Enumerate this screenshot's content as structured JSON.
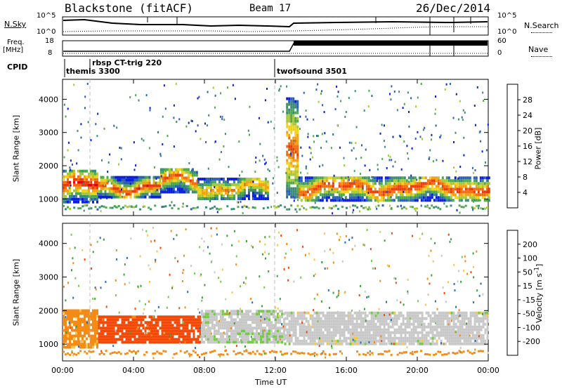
{
  "header": {
    "station": "Blackstone (fitACF)",
    "beam": "Beam 17",
    "date": "26/Dec/2014"
  },
  "noise_panel": {
    "left_label": "N.Sky",
    "right_label": "N.Search",
    "left_ticks": [
      "10^5",
      "10^0"
    ],
    "right_ticks": [
      "10^5",
      "10^0"
    ]
  },
  "freq_panel": {
    "left_label_1": "Freq.",
    "left_label_2": "[MHz]",
    "right_label": "Nave",
    "left_ticks": [
      "18",
      "8"
    ],
    "right_ticks": [
      "60",
      "0"
    ]
  },
  "cpid_panel": {
    "label": "CPID",
    "programs": [
      {
        "name": "themis 3300",
        "start": "00:00"
      },
      {
        "name": "rbsp CT-trig 220",
        "start": "01:30"
      },
      {
        "name": "twofsound 3501",
        "start": "12:00"
      }
    ]
  },
  "colors": {
    "power_scale": [
      "#0a1fdc",
      "#2c5fb8",
      "#3d8c78",
      "#4caa4c",
      "#a8c83a",
      "#f0d21e",
      "#f5a014",
      "#f06e0f",
      "#e83c0a",
      "#dc0a0a"
    ],
    "velocity_scale": [
      "#e00a0a",
      "#f04a0a",
      "#f58a14",
      "#f5c84a",
      "#c8c8c8",
      "#c8c8c8",
      "#78c850",
      "#3ca03c",
      "#2d6eb4",
      "#1e32c8"
    ]
  },
  "chart_data": [
    {
      "type": "heatmap",
      "name": "power",
      "xlabel": "",
      "ylabel": "Slant Range [km]",
      "colorbar_label": "Power [dB]",
      "colorbar_ticks": [
        4,
        8,
        12,
        16,
        20,
        24,
        28
      ],
      "x_ticks": [
        "00:00",
        "04:00",
        "08:00",
        "12:00",
        "16:00",
        "20:00",
        "00:00"
      ],
      "xlim_hours": [
        0,
        24
      ],
      "ylim": [
        500,
        4600
      ],
      "y_ticks": [
        1000,
        2000,
        3000,
        4000
      ],
      "bands": [
        {
          "x": [
            0.0,
            2.0
          ],
          "y": [
            950,
            1900
          ],
          "peak": 28
        },
        {
          "x": [
            2.0,
            5.5
          ],
          "y": [
            1100,
            1700
          ],
          "peak": 26
        },
        {
          "x": [
            5.5,
            7.6
          ],
          "y": [
            1250,
            1950
          ],
          "peak": 24
        },
        {
          "x": [
            7.6,
            11.6
          ],
          "y": [
            1050,
            1700
          ],
          "peak": 20
        },
        {
          "x": [
            12.6,
            13.3
          ],
          "y": [
            1100,
            4100
          ],
          "peak": 24
        },
        {
          "x": [
            13.3,
            24.0
          ],
          "y": [
            1000,
            1750
          ],
          "peak": 26
        }
      ]
    },
    {
      "type": "heatmap",
      "name": "velocity",
      "xlabel": "Time UT",
      "ylabel": "Slant Range [km]",
      "colorbar_label": "Velocity [m s-1]",
      "colorbar_ticks": [
        "200",
        "100",
        "50",
        "15",
        "-15",
        "-50",
        "-100",
        "-200"
      ],
      "x_ticks": [
        "00:00",
        "04:00",
        "08:00",
        "12:00",
        "16:00",
        "20:00",
        "00:00"
      ],
      "xlim_hours": [
        0,
        24
      ],
      "ylim": [
        500,
        4600
      ],
      "y_ticks": [
        1000,
        2000,
        3000,
        4000
      ],
      "bands": [
        {
          "x": [
            0.0,
            2.0
          ],
          "y": [
            950,
            2100
          ],
          "vel": -60
        },
        {
          "x": [
            2.0,
            7.8
          ],
          "y": [
            1100,
            1900
          ],
          "vel": -120
        },
        {
          "x": [
            7.8,
            12.5
          ],
          "y": [
            1100,
            2100
          ],
          "vel": 10
        },
        {
          "x": [
            12.5,
            24.0
          ],
          "y": [
            1050,
            2050
          ],
          "vel": 0
        }
      ]
    }
  ]
}
